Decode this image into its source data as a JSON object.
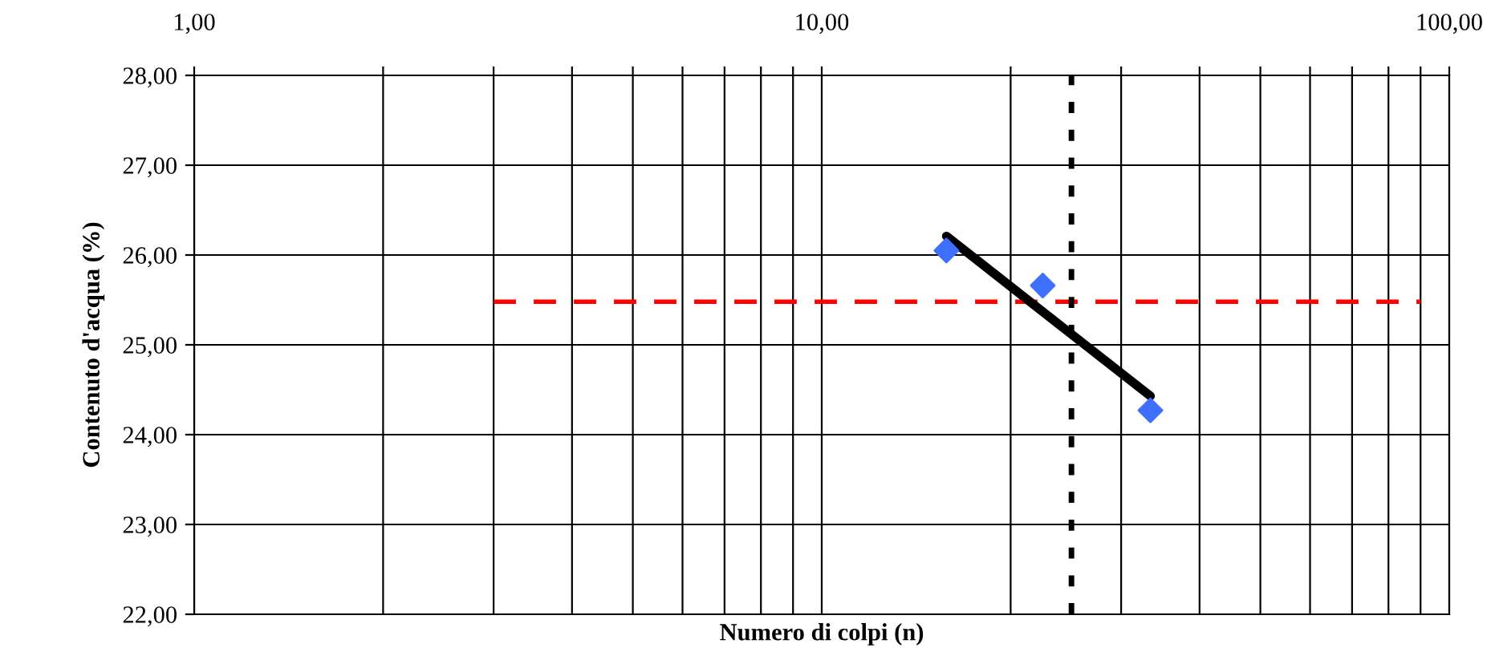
{
  "chart_data": {
    "type": "scatter",
    "xlabel": "Numero di colpi (n)",
    "ylabel": "Contenuto d'acqua (%)",
    "log": "x",
    "xlim": [
      1,
      100
    ],
    "ylim": [
      22,
      28
    ],
    "xticks": [
      {
        "value": 1,
        "label": "1,00"
      },
      {
        "value": 2,
        "label": null
      },
      {
        "value": 3,
        "label": null
      },
      {
        "value": 4,
        "label": null
      },
      {
        "value": 5,
        "label": null
      },
      {
        "value": 6,
        "label": null
      },
      {
        "value": 7,
        "label": null
      },
      {
        "value": 8,
        "label": null
      },
      {
        "value": 9,
        "label": null
      },
      {
        "value": 10,
        "label": "10,00"
      },
      {
        "value": 20,
        "label": null
      },
      {
        "value": 30,
        "label": null
      },
      {
        "value": 40,
        "label": null
      },
      {
        "value": 50,
        "label": null
      },
      {
        "value": 60,
        "label": null
      },
      {
        "value": 70,
        "label": null
      },
      {
        "value": 80,
        "label": null
      },
      {
        "value": 90,
        "label": null
      },
      {
        "value": 100,
        "label": "100,00"
      }
    ],
    "yticks": [
      {
        "value": 22,
        "label": "22,00"
      },
      {
        "value": 23,
        "label": "23,00"
      },
      {
        "value": 24,
        "label": "24,00"
      },
      {
        "value": 25,
        "label": "25,00"
      },
      {
        "value": 26,
        "label": "26,00"
      },
      {
        "value": 27,
        "label": "27,00"
      },
      {
        "value": 28,
        "label": "28,00"
      }
    ],
    "grid": true,
    "legend": false,
    "series": [
      {
        "type": "line",
        "color": "#ff0000",
        "line_style": "dashed",
        "marker": "none",
        "x": [
          3,
          90
        ],
        "values": [
          25.48,
          25.48
        ]
      },
      {
        "type": "line",
        "color": "#000000",
        "line_style": "solid",
        "marker": "none",
        "x": [
          15.8,
          33.4
        ],
        "values": [
          26.21,
          24.43
        ]
      },
      {
        "color": "#3f6fff",
        "marker": "diamond",
        "x": [
          15.8,
          22.5,
          33.4
        ],
        "values": [
          26.05,
          25.66,
          24.27
        ]
      }
    ],
    "ref_lines": [
      {
        "axis": "x",
        "value": 25,
        "color": "#000000",
        "line_style": "dotted"
      }
    ]
  }
}
